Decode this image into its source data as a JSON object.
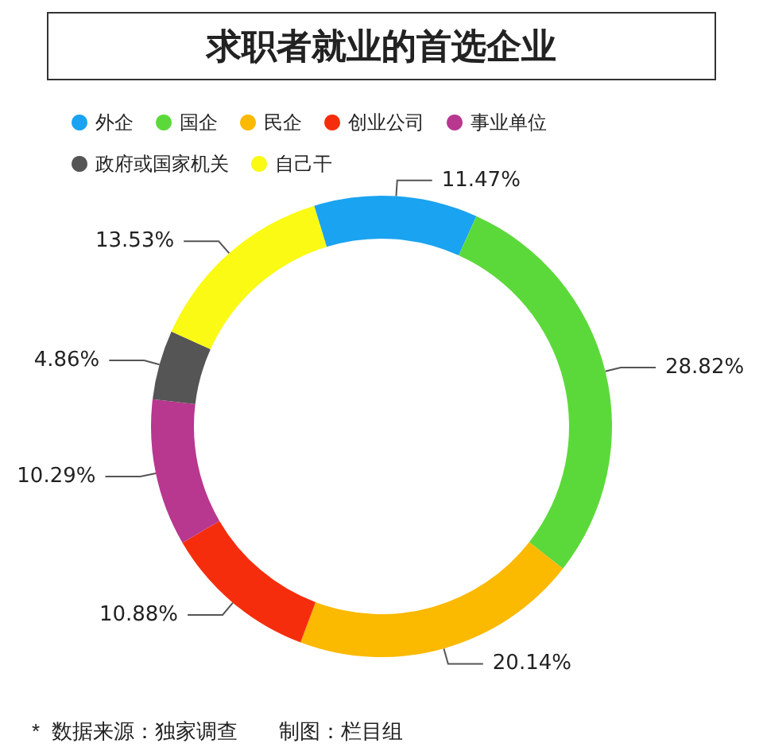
{
  "chart_data": {
    "type": "donut",
    "title": "求职者就业的首选企业",
    "categories": [
      "外企",
      "国企",
      "民企",
      "创业公司",
      "事业单位",
      "政府或国家机关",
      "自己干"
    ],
    "values": [
      11.47,
      28.82,
      20.14,
      10.88,
      10.29,
      4.86,
      13.53
    ],
    "colors": [
      "#1aa3f0",
      "#5cd93a",
      "#fbb900",
      "#f62d0c",
      "#b8378f",
      "#555555",
      "#fafa14"
    ],
    "value_labels": [
      "11.47%",
      "28.82%",
      "20.14%",
      "10.88%",
      "10.29%",
      "4.86%",
      "13.53%"
    ],
    "legend": "top left",
    "annotations": [
      "*  数据来源：独家调查　　制图：栏目组"
    ]
  }
}
